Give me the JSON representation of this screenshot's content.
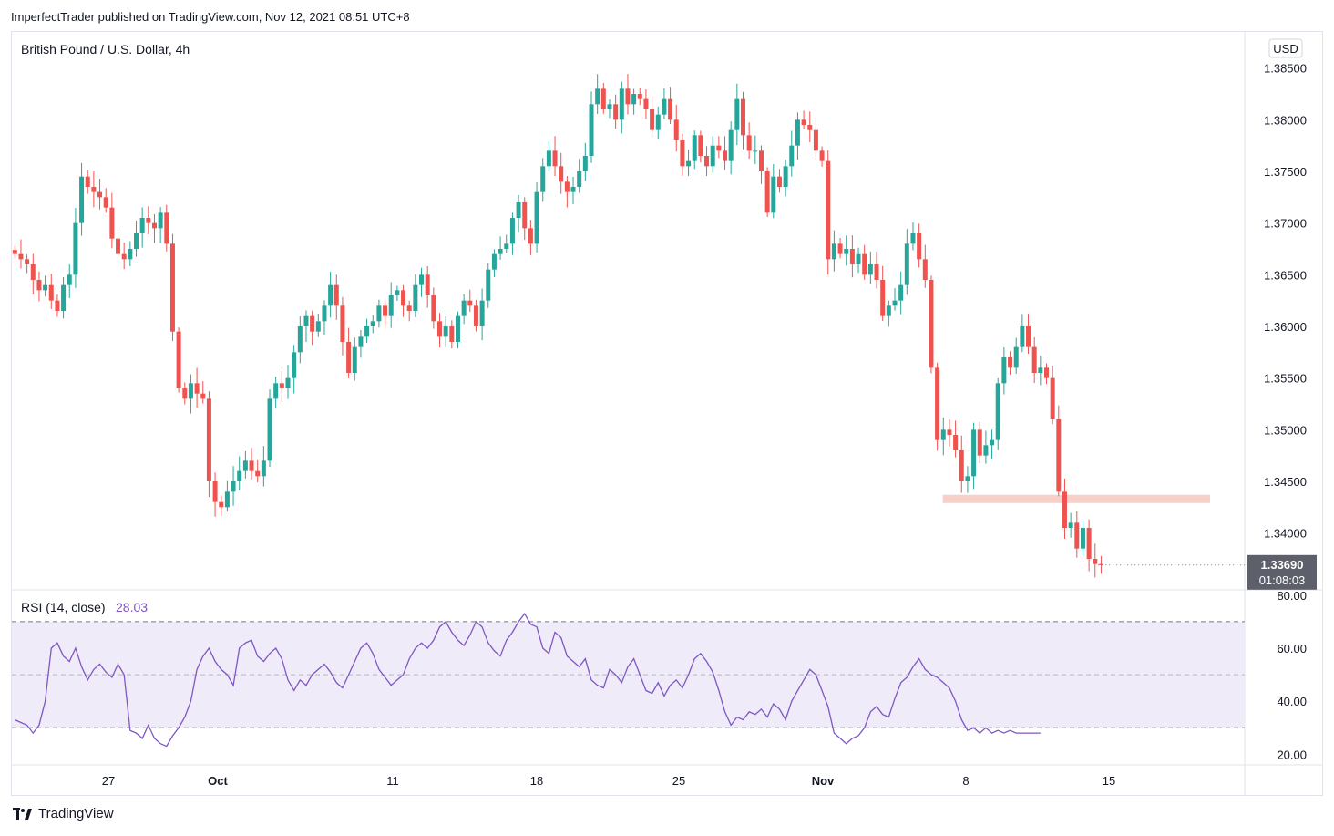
{
  "header": {
    "published_line": "ImperfectTrader published on TradingView.com, Nov 12, 2021 08:51 UTC+8"
  },
  "footer": {
    "brand": "TradingView",
    "logo_icon": "tradingview-logo-icon"
  },
  "colors": {
    "up": "#26a69a",
    "down": "#ef5350",
    "rsi_line": "#7e57c2",
    "rsi_band": "#f0ebf8",
    "support_zone": "#f8d0ca",
    "price_label_bg": "#5d606b"
  },
  "chart_data": [
    {
      "type": "candlestick",
      "title": "British Pound / U.S. Dollar, 4h",
      "currency_label": "USD",
      "ylim": [
        1.3345,
        1.3885
      ],
      "y_ticks": [
        "1.38500",
        "1.38000",
        "1.37500",
        "1.37000",
        "1.36500",
        "1.36000",
        "1.35500",
        "1.35000",
        "1.34500",
        "1.34000"
      ],
      "x_ticks": [
        "27",
        "Oct",
        "11",
        "18",
        "25",
        "Nov",
        "8",
        "15"
      ],
      "last_price": "1.33690",
      "countdown": "01:08:03",
      "support_zone": {
        "low": 1.3429,
        "high": 1.3437
      },
      "series": [
        {
          "name": "GBPUSD",
          "close": [
            1.367,
            1.3665,
            1.366,
            1.3645,
            1.3635,
            1.364,
            1.3625,
            1.3615,
            1.364,
            1.365,
            1.37,
            1.3745,
            1.3735,
            1.373,
            1.3725,
            1.3715,
            1.3685,
            1.367,
            1.3665,
            1.3675,
            1.369,
            1.3705,
            1.37,
            1.3695,
            1.371,
            1.368,
            1.3595,
            1.354,
            1.353,
            1.3545,
            1.3535,
            1.353,
            1.345,
            1.343,
            1.3425,
            1.344,
            1.345,
            1.346,
            1.347,
            1.346,
            1.3455,
            1.347,
            1.353,
            1.3545,
            1.354,
            1.355,
            1.3575,
            1.36,
            1.361,
            1.3595,
            1.3605,
            1.362,
            1.364,
            1.362,
            1.3585,
            1.3555,
            1.358,
            1.359,
            1.36,
            1.3605,
            1.362,
            1.361,
            1.363,
            1.3635,
            1.362,
            1.3615,
            1.364,
            1.365,
            1.363,
            1.3605,
            1.359,
            1.36,
            1.3585,
            1.361,
            1.3625,
            1.362,
            1.36,
            1.3625,
            1.3655,
            1.367,
            1.3675,
            1.368,
            1.3705,
            1.372,
            1.3695,
            1.368,
            1.373,
            1.3755,
            1.377,
            1.3755,
            1.374,
            1.373,
            1.3735,
            1.375,
            1.3765,
            1.3815,
            1.383,
            1.381,
            1.3815,
            1.38,
            1.383,
            1.3815,
            1.3825,
            1.382,
            1.381,
            1.379,
            1.3805,
            1.382,
            1.38,
            1.378,
            1.3755,
            1.376,
            1.3785,
            1.3765,
            1.3755,
            1.3775,
            1.377,
            1.376,
            1.379,
            1.382,
            1.3785,
            1.377,
            1.377,
            1.375,
            1.371,
            1.3745,
            1.3735,
            1.3755,
            1.3775,
            1.38,
            1.3795,
            1.379,
            1.377,
            1.376,
            1.3665,
            1.368,
            1.367,
            1.3675,
            1.366,
            1.367,
            1.365,
            1.366,
            1.3645,
            1.361,
            1.362,
            1.3625,
            1.364,
            1.368,
            1.369,
            1.3665,
            1.3645,
            1.356,
            1.349,
            1.35,
            1.3495,
            1.348,
            1.345,
            1.3455,
            1.35,
            1.3475,
            1.3485,
            1.349,
            1.3545,
            1.357,
            1.356,
            1.358,
            1.36,
            1.358,
            1.3555,
            1.356,
            1.355,
            1.351,
            1.344,
            1.3405,
            1.341,
            1.3385,
            1.3405,
            1.3375,
            1.337,
            1.3369
          ]
        }
      ]
    },
    {
      "type": "line",
      "title": "RSI (14, close)",
      "last_value": "28.03",
      "ylim": [
        16,
        82
      ],
      "y_ticks": [
        "80.00",
        "60.00",
        "40.00",
        "20.00"
      ],
      "bands": {
        "upper": 70,
        "middle": 50,
        "lower": 30
      },
      "series": [
        {
          "name": "RSI",
          "values": [
            33,
            32,
            31,
            28,
            31,
            40,
            60,
            62,
            57,
            55,
            60,
            53,
            48,
            52,
            54,
            51,
            49,
            54,
            50,
            29,
            28,
            26,
            31,
            26,
            24,
            23,
            27,
            30,
            34,
            40,
            52,
            57,
            60,
            55,
            52,
            50,
            46,
            60,
            62,
            63,
            57,
            55,
            58,
            60,
            56,
            48,
            44,
            48,
            46,
            50,
            52,
            54,
            51,
            47,
            45,
            50,
            55,
            60,
            62,
            58,
            52,
            49,
            46,
            48,
            50,
            56,
            60,
            62,
            60,
            63,
            68,
            70,
            66,
            63,
            61,
            65,
            70,
            68,
            62,
            59,
            57,
            63,
            66,
            70,
            73,
            69,
            68,
            60,
            58,
            66,
            64,
            57,
            55,
            53,
            56,
            48,
            46,
            45,
            52,
            50,
            47,
            53,
            56,
            50,
            44,
            43,
            47,
            42,
            46,
            48,
            45,
            50,
            56,
            58,
            55,
            51,
            44,
            36,
            31,
            34,
            33,
            36,
            35,
            37,
            34,
            39,
            37,
            33,
            40,
            44,
            48,
            52,
            50,
            44,
            38,
            28,
            26,
            24,
            26,
            27,
            30,
            36,
            38,
            35,
            34,
            41,
            47,
            49,
            53,
            56,
            52,
            50,
            49,
            47,
            45,
            40,
            33,
            29,
            30,
            28,
            30,
            28,
            29,
            28,
            29,
            28,
            28,
            28,
            28,
            28
          ]
        }
      ]
    }
  ]
}
